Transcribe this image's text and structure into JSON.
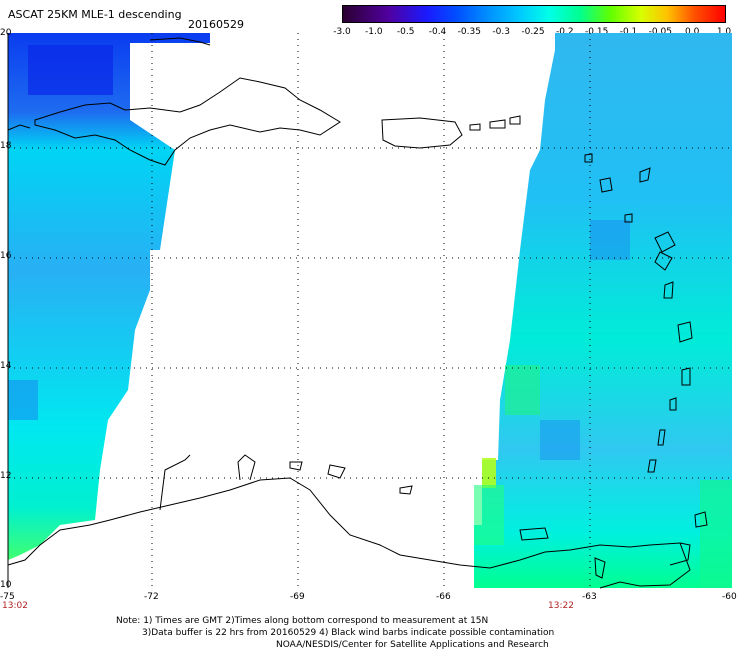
{
  "header": {
    "product": "ASCAT 25KM MLE-1 descending",
    "date": "20160529"
  },
  "colorbar": {
    "tick_labels": [
      "-3.0",
      "-1.0",
      "-0.5",
      "-0.4",
      "-0.35",
      "-0.3",
      "-0.25",
      "-0.2",
      "-0.15",
      "-0.1",
      "-0.05",
      "0.0",
      "1.0"
    ],
    "colors": [
      "#3a0040",
      "#5a00b0",
      "#1e1eff",
      "#0050ff",
      "#0090ff",
      "#00c8ff",
      "#00ffe0",
      "#00ff80",
      "#60ff00",
      "#d0ff00",
      "#ffc000",
      "#ff5000",
      "#ff0000"
    ]
  },
  "map": {
    "lon_labels": [
      "-75",
      "-72",
      "-69",
      "-66",
      "-63",
      "-60"
    ],
    "lat_labels": [
      "20",
      "18",
      "16",
      "14",
      "12",
      "10"
    ],
    "times": [
      "13:02",
      "13:22"
    ]
  },
  "notes": {
    "line1": "Note: 1) Times are GMT 2)Times along bottom correspond to measurement at 15N",
    "line2": "3)Data buffer is 22 hrs from 20160529 4) Black wind barbs indicate possible contamination",
    "line3": "NOAA/NESDIS/Center for Satellite Applications and Research"
  }
}
